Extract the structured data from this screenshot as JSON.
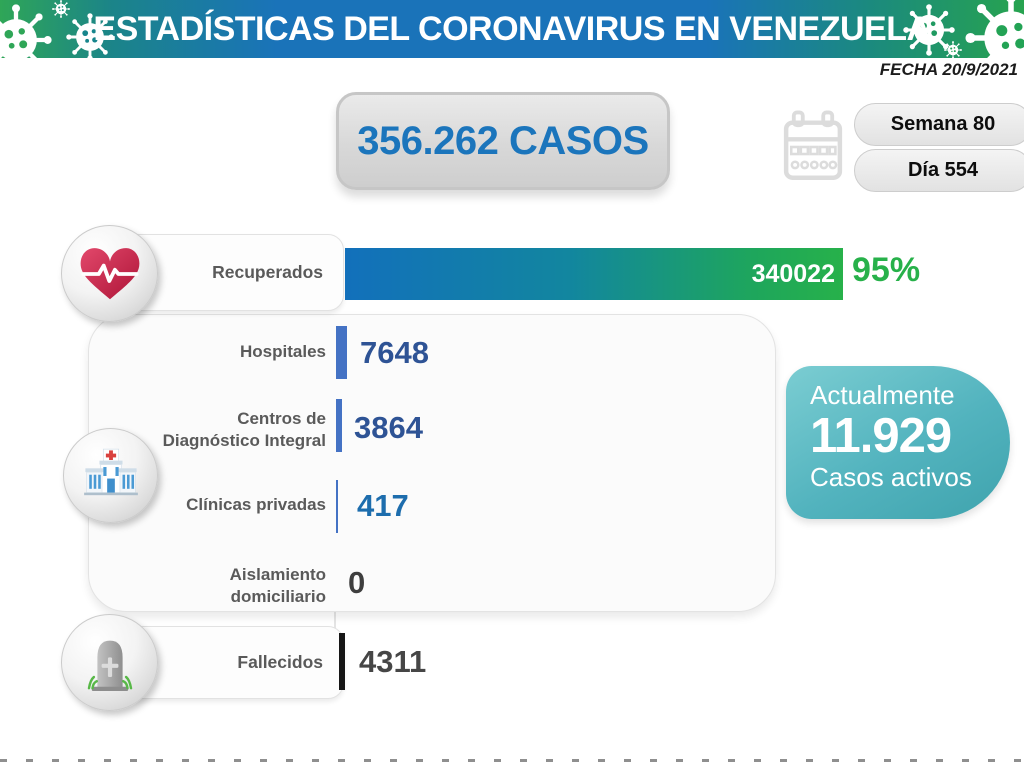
{
  "header": {
    "title": "ESTADÍSTICAS DEL CORONAVIRUS EN VENEZUELA",
    "date": "FECHA 20/9/2021"
  },
  "summary": {
    "total": "356.262 CASOS",
    "week": "Semana 80",
    "day": "Día 554"
  },
  "recovered": {
    "label": "Recuperados",
    "value": 340022,
    "value_text": "340022",
    "percent": "95%"
  },
  "facilities": {
    "rows": [
      {
        "label": "Hospitales",
        "label2": "",
        "value": 7648,
        "value_text": "7648"
      },
      {
        "label": "Centros de",
        "label2": "Diagnóstico Integral",
        "value": 3864,
        "value_text": "3864"
      },
      {
        "label": "Clínicas privadas",
        "label2": "",
        "value": 417,
        "value_text": "417"
      },
      {
        "label": "Aislamiento",
        "label2": "domiciliario",
        "value": 0,
        "value_text": "0"
      }
    ]
  },
  "active": {
    "line1": "Actualmente",
    "value_text": "11.929",
    "line2": "Casos activos"
  },
  "deceased": {
    "label": "Fallecidos",
    "value": 4311,
    "value_text": "4311"
  },
  "icons": {
    "header_icons": "virus-icon",
    "date_icon": "calendar-icon",
    "recovered_icon": "heart-pulse-icon",
    "facilities_icon": "hospital-icon",
    "deceased_icon": "tombstone-icon"
  },
  "colors": {
    "banner_blue": "#1a73b9",
    "banner_green": "#2fa657",
    "total_blue": "#1b75bc",
    "bar_blue": "#1270bb",
    "bar_green": "#27b14a",
    "mini_bar_blue": "#4472c4",
    "value_blue": "#2e5395",
    "active_teal": "#4cafba",
    "label_gray": "#5a5a5a",
    "deceased_black": "#161616"
  },
  "chart_data": {
    "type": "bar",
    "orientation": "horizontal",
    "title": "ESTADÍSTICAS DEL CORONAVIRUS EN VENEZUELA",
    "subtitle": "FECHA 20/9/2021",
    "total_cases": 356262,
    "total_cases_label": "356.262 CASOS",
    "week": "Semana 80",
    "day": "Día 554",
    "categories": [
      "Recuperados",
      "Hospitales",
      "Centros de Diagnóstico Integral",
      "Clínicas privadas",
      "Aislamiento domiciliario",
      "Fallecidos"
    ],
    "values": [
      340022,
      7648,
      3864,
      417,
      0,
      4311
    ],
    "data_labels": [
      "340022",
      "7648",
      "3864",
      "417",
      "0",
      "4311"
    ],
    "recovered_percent": 95,
    "active_cases": 11929,
    "active_cases_label": "Actualmente 11.929 Casos activos",
    "x_max": 340022,
    "grid": false,
    "legend": false
  }
}
